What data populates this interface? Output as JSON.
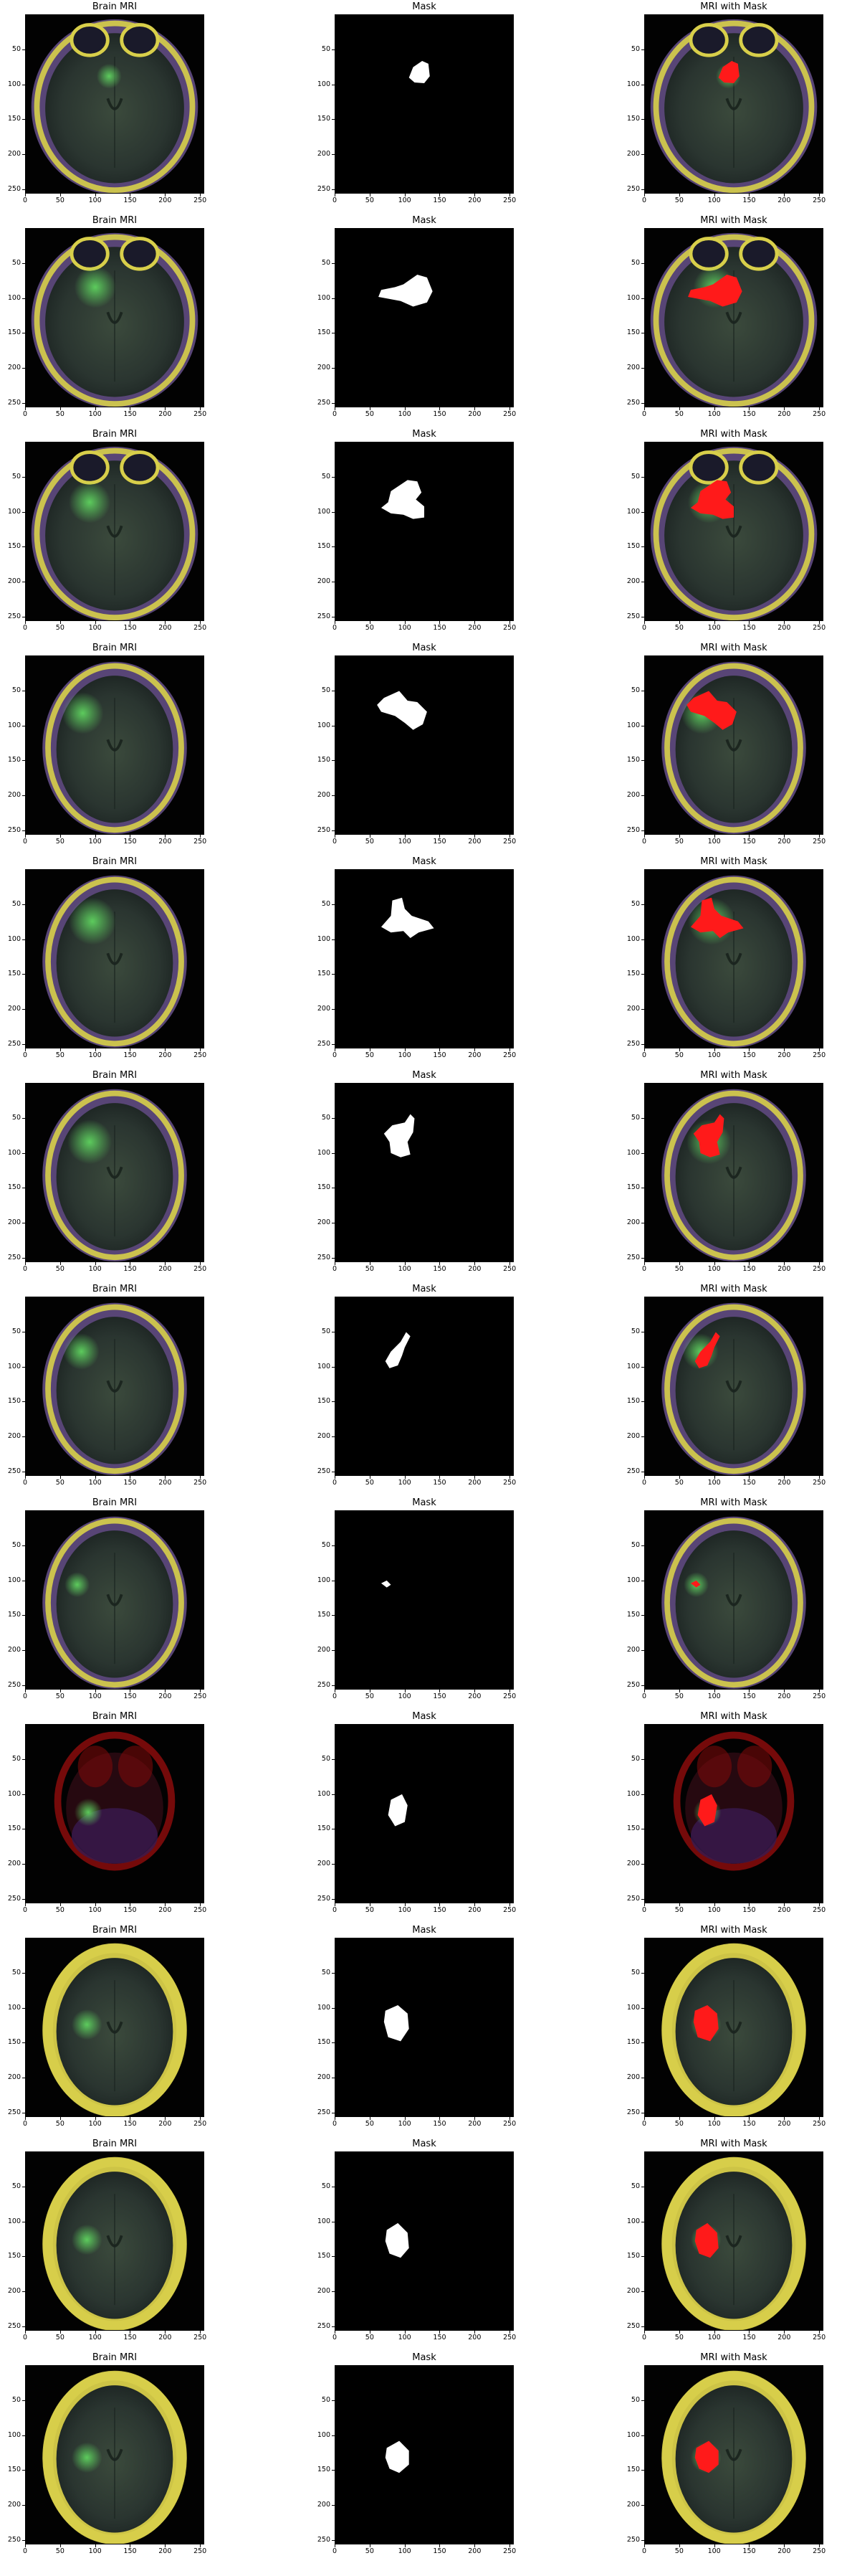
{
  "columns": [
    "Brain MRI",
    "Mask",
    "MRI with Mask"
  ],
  "axis": {
    "x_ticks": [
      "0",
      "50",
      "100",
      "150",
      "200",
      "250"
    ],
    "y_ticks": [
      "0",
      "50",
      "100",
      "150",
      "200",
      "250"
    ]
  },
  "colors": {
    "background": "#ffffff",
    "mask": "#ffffff",
    "overlay": "#ff1a1a",
    "tumor_glow": "#5fd35f",
    "skull_yellow": "#d8cf4a",
    "scalp_purple": "#7d62a8"
  },
  "rows": [
    {
      "brain": "axial-orbit-level",
      "tumor": "frontal-medial"
    },
    {
      "brain": "axial-orbit-level",
      "tumor": "frontal-medial"
    },
    {
      "brain": "axial-orbit-level",
      "tumor": "frontal-left"
    },
    {
      "brain": "axial-mid",
      "tumor": "frontal-left"
    },
    {
      "brain": "axial-mid",
      "tumor": "frontal-left"
    },
    {
      "brain": "axial-mid",
      "tumor": "frontal-left"
    },
    {
      "brain": "axial-high",
      "tumor": "frontal-left-small"
    },
    {
      "brain": "axial-high",
      "tumor": "frontal-left-tiny"
    },
    {
      "brain": "red-tint-low",
      "tumor": "left-posterior"
    },
    {
      "brain": "axial-yellow",
      "tumor": "left-mid"
    },
    {
      "brain": "axial-yellow",
      "tumor": "left-mid"
    },
    {
      "brain": "axial-yellow",
      "tumor": "left-mid"
    }
  ]
}
